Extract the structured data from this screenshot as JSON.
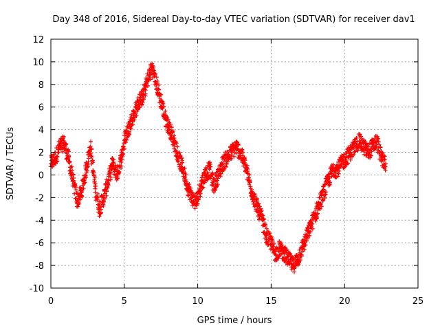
{
  "chart_data": {
    "type": "scatter",
    "title": "Day 348 of 2016, Sidereal Day-to-day VTEC variation (SDTVAR) for receiver dav1",
    "xlabel": "GPS time / hours",
    "ylabel": "SDTVAR / TECUs",
    "xlim": [
      0,
      25
    ],
    "ylim": [
      -10,
      12
    ],
    "xticks": [
      "0",
      "5",
      "10",
      "15",
      "20",
      "25"
    ],
    "yticks": [
      "-10",
      "-8",
      "-6",
      "-4",
      "-2",
      "0",
      "2",
      "4",
      "6",
      "8",
      "10",
      "12"
    ],
    "grid": true,
    "marker": "+",
    "series": [
      {
        "name": "dav1",
        "color": "#ff0000",
        "x": [
          0.0,
          0.3,
          0.6,
          0.9,
          1.2,
          1.5,
          1.8,
          2.1,
          2.4,
          2.7,
          3.0,
          3.3,
          3.6,
          3.9,
          4.2,
          4.5,
          4.8,
          5.1,
          5.4,
          5.7,
          6.0,
          6.3,
          6.6,
          6.9,
          7.2,
          7.5,
          7.8,
          8.1,
          8.4,
          8.7,
          9.0,
          9.3,
          9.6,
          9.9,
          10.2,
          10.5,
          10.8,
          11.1,
          11.4,
          11.7,
          12.0,
          12.3,
          12.6,
          12.9,
          13.2,
          13.5,
          13.8,
          14.1,
          14.4,
          14.7,
          15.0,
          15.3,
          15.6,
          15.9,
          16.2,
          16.5,
          16.8,
          17.1,
          17.4,
          17.7,
          18.0,
          18.3,
          18.6,
          18.9,
          19.2,
          19.5,
          19.8,
          20.1,
          20.4,
          20.7,
          21.0,
          21.3,
          21.6,
          21.9,
          22.2,
          22.5,
          22.8
        ],
        "y": [
          1.0,
          1.5,
          2.5,
          2.8,
          1.5,
          -0.5,
          -2.3,
          -1.5,
          0.5,
          2.5,
          -1.0,
          -3.0,
          -2.0,
          -0.5,
          1.0,
          0.0,
          1.5,
          3.5,
          4.5,
          5.5,
          6.5,
          7.0,
          8.5,
          9.5,
          8.0,
          6.5,
          5.0,
          4.0,
          3.0,
          1.5,
          0.5,
          -1.0,
          -2.0,
          -2.5,
          -1.0,
          0.0,
          0.5,
          -1.0,
          0.0,
          1.0,
          1.5,
          2.0,
          2.5,
          2.0,
          1.0,
          -0.5,
          -2.0,
          -3.0,
          -4.0,
          -5.5,
          -6.0,
          -7.0,
          -6.5,
          -7.0,
          -7.5,
          -8.0,
          -7.5,
          -6.5,
          -5.5,
          -4.5,
          -3.5,
          -2.5,
          -1.5,
          -0.5,
          0.5,
          0.5,
          1.0,
          1.5,
          2.0,
          2.5,
          3.0,
          2.5,
          2.0,
          2.5,
          3.0,
          1.5,
          1.0
        ]
      }
    ]
  }
}
